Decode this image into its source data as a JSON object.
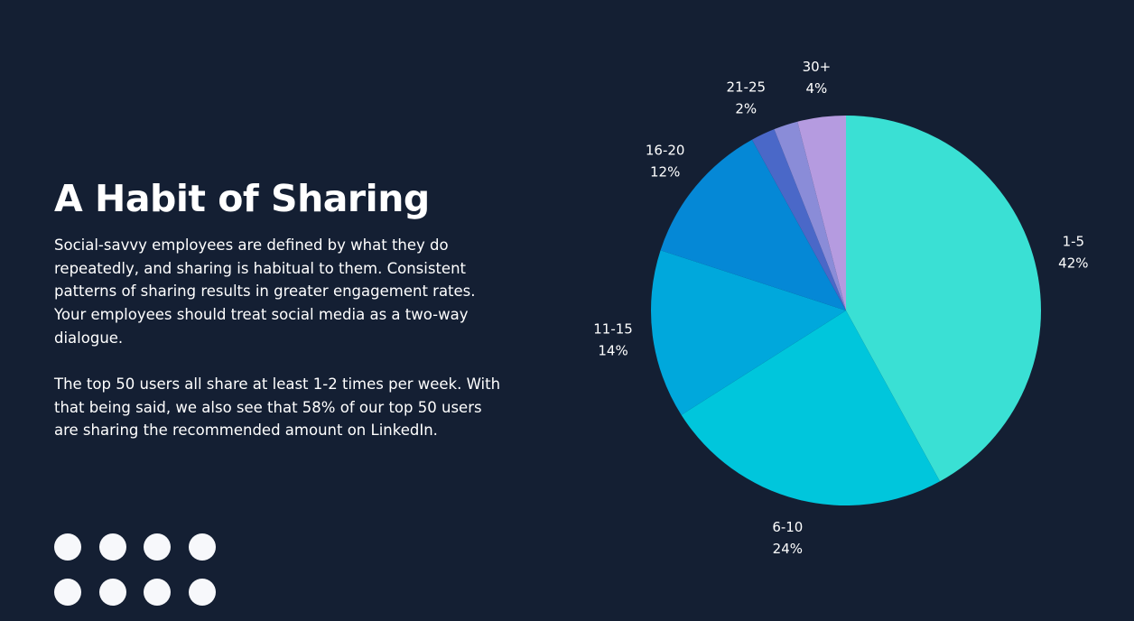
{
  "slide": {
    "title": "A Habit of Sharing",
    "paragraphs": [
      "Social-savvy employees are defined by what they do repeatedly, and sharing is habitual to them. Consistent patterns of sharing results in greater engagement rates. Your employees should treat social media as a two-way dialogue.",
      "The top 50 users all share at least 1-2 times per week. With that being said, we also see that 58% of our top 50 users are sharing the recommended amount on LinkedIn."
    ],
    "dot_color": "#f7f8fb",
    "background_color": "#141f33"
  },
  "chart_data": {
    "type": "pie",
    "title": "",
    "start_angle": "top",
    "direction": "clockwise",
    "slices": [
      {
        "category": "1-5",
        "value": 42,
        "value_label": "42%",
        "color": "#3ae0d4"
      },
      {
        "category": "6-10",
        "value": 24,
        "value_label": "24%",
        "color": "#00c6dc"
      },
      {
        "category": "11-15",
        "value": 14,
        "value_label": "14%",
        "color": "#00a8dc"
      },
      {
        "category": "16-20",
        "value": 12,
        "value_label": "12%",
        "color": "#0588d6"
      },
      {
        "category": "21-25",
        "value": 2,
        "value_label": "2%",
        "color": "#4a68c8"
      },
      {
        "category": "",
        "value": 2,
        "value_label": "",
        "color": "#8a8cd8"
      },
      {
        "category": "30+",
        "value": 4,
        "value_label": "4%",
        "color": "#b59be0"
      }
    ]
  }
}
